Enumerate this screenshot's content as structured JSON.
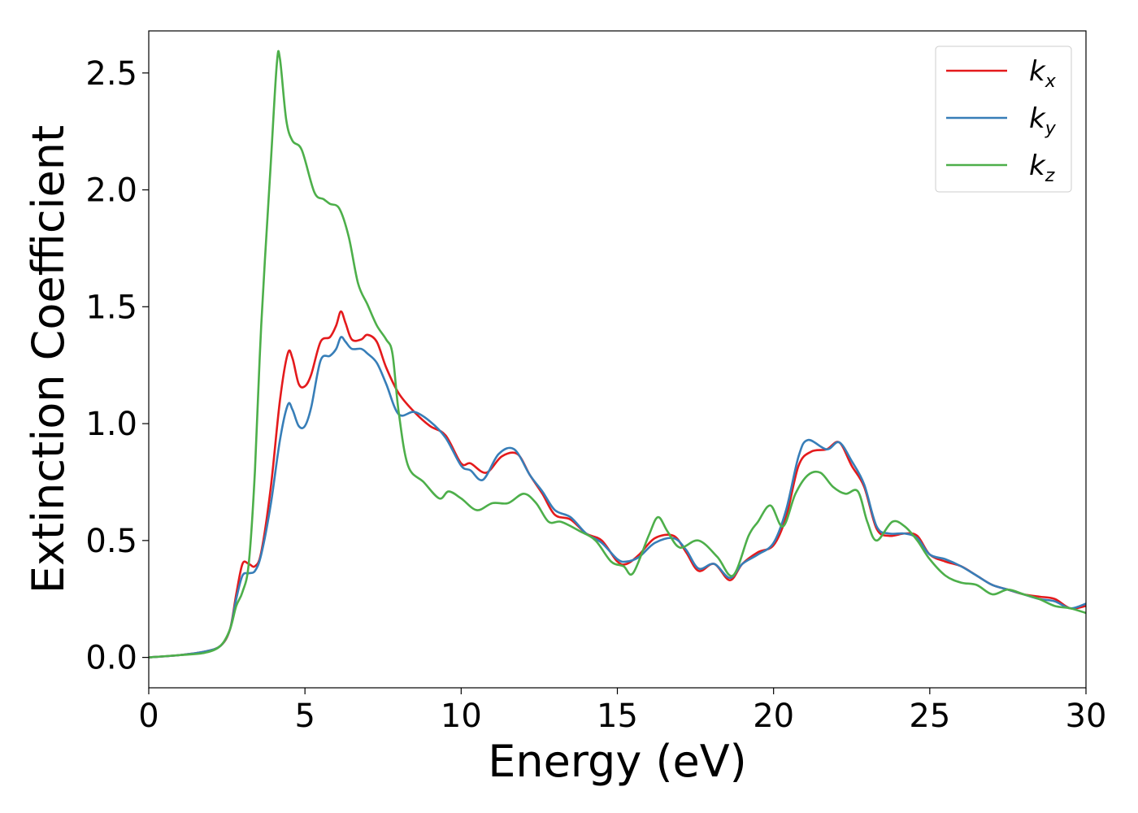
{
  "chart_data": {
    "type": "line",
    "title": "",
    "xlabel": "Energy (eV)",
    "ylabel": "Extinction Coefficient",
    "xlim": [
      0,
      30
    ],
    "ylim": [
      -0.13,
      2.68
    ],
    "xticks": [
      0,
      5,
      10,
      15,
      20,
      25,
      30
    ],
    "xtick_labels": [
      "0",
      "5",
      "10",
      "15",
      "20",
      "25",
      "30"
    ],
    "yticks": [
      0.0,
      0.5,
      1.0,
      1.5,
      2.0,
      2.5
    ],
    "ytick_labels": [
      "0.0",
      "0.5",
      "1.0",
      "1.5",
      "2.0",
      "2.5"
    ],
    "grid": false,
    "legend_position": "top-right",
    "series": [
      {
        "name": "k_x",
        "base": "k",
        "sub": "x",
        "color": "#e41a1c",
        "points": [
          [
            0,
            0
          ],
          [
            1,
            0.01
          ],
          [
            1.8,
            0.025
          ],
          [
            2.3,
            0.05
          ],
          [
            2.6,
            0.12
          ],
          [
            2.8,
            0.27
          ],
          [
            3.0,
            0.4
          ],
          [
            3.2,
            0.4
          ],
          [
            3.4,
            0.39
          ],
          [
            3.6,
            0.45
          ],
          [
            3.9,
            0.72
          ],
          [
            4.2,
            1.1
          ],
          [
            4.45,
            1.3
          ],
          [
            4.6,
            1.28
          ],
          [
            4.8,
            1.17
          ],
          [
            5.0,
            1.16
          ],
          [
            5.2,
            1.21
          ],
          [
            5.5,
            1.35
          ],
          [
            5.8,
            1.37
          ],
          [
            6.0,
            1.42
          ],
          [
            6.15,
            1.48
          ],
          [
            6.3,
            1.43
          ],
          [
            6.5,
            1.36
          ],
          [
            6.8,
            1.36
          ],
          [
            7.0,
            1.38
          ],
          [
            7.3,
            1.35
          ],
          [
            7.6,
            1.24
          ],
          [
            8.0,
            1.13
          ],
          [
            8.5,
            1.05
          ],
          [
            9.0,
            0.99
          ],
          [
            9.5,
            0.95
          ],
          [
            10.0,
            0.83
          ],
          [
            10.3,
            0.83
          ],
          [
            10.8,
            0.79
          ],
          [
            11.3,
            0.86
          ],
          [
            11.8,
            0.87
          ],
          [
            12.2,
            0.78
          ],
          [
            12.6,
            0.7
          ],
          [
            13.0,
            0.61
          ],
          [
            13.5,
            0.59
          ],
          [
            14.0,
            0.53
          ],
          [
            14.5,
            0.5
          ],
          [
            15.0,
            0.41
          ],
          [
            15.3,
            0.4
          ],
          [
            15.7,
            0.44
          ],
          [
            16.2,
            0.51
          ],
          [
            16.8,
            0.52
          ],
          [
            17.2,
            0.45
          ],
          [
            17.6,
            0.37
          ],
          [
            18.1,
            0.4
          ],
          [
            18.6,
            0.33
          ],
          [
            19.0,
            0.4
          ],
          [
            19.5,
            0.45
          ],
          [
            20.0,
            0.48
          ],
          [
            20.4,
            0.6
          ],
          [
            20.8,
            0.82
          ],
          [
            21.2,
            0.88
          ],
          [
            21.7,
            0.89
          ],
          [
            22.1,
            0.92
          ],
          [
            22.5,
            0.82
          ],
          [
            22.9,
            0.73
          ],
          [
            23.3,
            0.55
          ],
          [
            23.7,
            0.52
          ],
          [
            24.2,
            0.53
          ],
          [
            24.6,
            0.52
          ],
          [
            25.0,
            0.44
          ],
          [
            25.5,
            0.41
          ],
          [
            26.0,
            0.39
          ],
          [
            26.5,
            0.35
          ],
          [
            27.0,
            0.31
          ],
          [
            27.5,
            0.29
          ],
          [
            28.0,
            0.27
          ],
          [
            28.5,
            0.26
          ],
          [
            29.0,
            0.25
          ],
          [
            29.5,
            0.21
          ],
          [
            30.0,
            0.22
          ]
        ]
      },
      {
        "name": "k_y",
        "base": "k",
        "sub": "y",
        "color": "#377eb8",
        "points": [
          [
            0,
            0
          ],
          [
            1,
            0.01
          ],
          [
            1.8,
            0.025
          ],
          [
            2.3,
            0.05
          ],
          [
            2.6,
            0.12
          ],
          [
            2.8,
            0.25
          ],
          [
            3.0,
            0.35
          ],
          [
            3.2,
            0.36
          ],
          [
            3.4,
            0.37
          ],
          [
            3.6,
            0.44
          ],
          [
            3.9,
            0.65
          ],
          [
            4.2,
            0.93
          ],
          [
            4.45,
            1.08
          ],
          [
            4.6,
            1.06
          ],
          [
            4.8,
            0.99
          ],
          [
            5.0,
            0.99
          ],
          [
            5.2,
            1.07
          ],
          [
            5.5,
            1.27
          ],
          [
            5.8,
            1.29
          ],
          [
            6.0,
            1.32
          ],
          [
            6.15,
            1.37
          ],
          [
            6.3,
            1.35
          ],
          [
            6.5,
            1.32
          ],
          [
            6.8,
            1.32
          ],
          [
            7.0,
            1.3
          ],
          [
            7.3,
            1.26
          ],
          [
            7.6,
            1.17
          ],
          [
            8.0,
            1.04
          ],
          [
            8.5,
            1.05
          ],
          [
            9.0,
            1.01
          ],
          [
            9.5,
            0.94
          ],
          [
            10.0,
            0.82
          ],
          [
            10.3,
            0.8
          ],
          [
            10.7,
            0.76
          ],
          [
            11.2,
            0.87
          ],
          [
            11.7,
            0.89
          ],
          [
            12.2,
            0.78
          ],
          [
            12.6,
            0.71
          ],
          [
            13.0,
            0.63
          ],
          [
            13.5,
            0.6
          ],
          [
            14.0,
            0.53
          ],
          [
            14.5,
            0.49
          ],
          [
            15.0,
            0.42
          ],
          [
            15.3,
            0.41
          ],
          [
            15.7,
            0.43
          ],
          [
            16.2,
            0.49
          ],
          [
            16.8,
            0.51
          ],
          [
            17.2,
            0.46
          ],
          [
            17.6,
            0.38
          ],
          [
            18.1,
            0.4
          ],
          [
            18.6,
            0.34
          ],
          [
            19.0,
            0.4
          ],
          [
            19.5,
            0.44
          ],
          [
            20.0,
            0.49
          ],
          [
            20.4,
            0.63
          ],
          [
            20.8,
            0.86
          ],
          [
            21.1,
            0.93
          ],
          [
            21.7,
            0.89
          ],
          [
            22.1,
            0.92
          ],
          [
            22.5,
            0.84
          ],
          [
            22.9,
            0.74
          ],
          [
            23.3,
            0.56
          ],
          [
            23.7,
            0.53
          ],
          [
            24.2,
            0.53
          ],
          [
            24.6,
            0.51
          ],
          [
            25.0,
            0.44
          ],
          [
            25.5,
            0.42
          ],
          [
            26.0,
            0.39
          ],
          [
            26.5,
            0.35
          ],
          [
            27.0,
            0.31
          ],
          [
            27.5,
            0.29
          ],
          [
            28.0,
            0.27
          ],
          [
            28.5,
            0.25
          ],
          [
            29.0,
            0.24
          ],
          [
            29.5,
            0.21
          ],
          [
            30.0,
            0.23
          ]
        ]
      },
      {
        "name": "k_z",
        "base": "k",
        "sub": "z",
        "color": "#4daf4a",
        "points": [
          [
            0,
            0
          ],
          [
            1,
            0.01
          ],
          [
            1.8,
            0.02
          ],
          [
            2.3,
            0.05
          ],
          [
            2.6,
            0.12
          ],
          [
            2.8,
            0.22
          ],
          [
            3.0,
            0.28
          ],
          [
            3.2,
            0.4
          ],
          [
            3.4,
            0.8
          ],
          [
            3.6,
            1.42
          ],
          [
            3.9,
            2.1
          ],
          [
            4.1,
            2.54
          ],
          [
            4.2,
            2.56
          ],
          [
            4.4,
            2.3
          ],
          [
            4.6,
            2.21
          ],
          [
            4.9,
            2.17
          ],
          [
            5.3,
            1.99
          ],
          [
            5.6,
            1.96
          ],
          [
            5.8,
            1.94
          ],
          [
            6.1,
            1.92
          ],
          [
            6.4,
            1.8
          ],
          [
            6.7,
            1.6
          ],
          [
            7.0,
            1.51
          ],
          [
            7.3,
            1.42
          ],
          [
            7.6,
            1.36
          ],
          [
            7.8,
            1.3
          ],
          [
            8.0,
            1.05
          ],
          [
            8.3,
            0.82
          ],
          [
            8.8,
            0.75
          ],
          [
            9.3,
            0.68
          ],
          [
            9.6,
            0.71
          ],
          [
            10.0,
            0.68
          ],
          [
            10.5,
            0.63
          ],
          [
            11.0,
            0.66
          ],
          [
            11.5,
            0.66
          ],
          [
            12.0,
            0.7
          ],
          [
            12.4,
            0.66
          ],
          [
            12.8,
            0.58
          ],
          [
            13.2,
            0.58
          ],
          [
            13.8,
            0.54
          ],
          [
            14.3,
            0.5
          ],
          [
            14.8,
            0.41
          ],
          [
            15.2,
            0.39
          ],
          [
            15.5,
            0.36
          ],
          [
            16.0,
            0.52
          ],
          [
            16.3,
            0.6
          ],
          [
            16.6,
            0.54
          ],
          [
            17.0,
            0.47
          ],
          [
            17.6,
            0.5
          ],
          [
            18.2,
            0.43
          ],
          [
            18.7,
            0.35
          ],
          [
            19.2,
            0.52
          ],
          [
            19.5,
            0.58
          ],
          [
            19.9,
            0.65
          ],
          [
            20.3,
            0.56
          ],
          [
            20.7,
            0.7
          ],
          [
            21.1,
            0.78
          ],
          [
            21.5,
            0.79
          ],
          [
            21.9,
            0.73
          ],
          [
            22.3,
            0.7
          ],
          [
            22.7,
            0.71
          ],
          [
            23.0,
            0.58
          ],
          [
            23.3,
            0.5
          ],
          [
            23.8,
            0.58
          ],
          [
            24.2,
            0.56
          ],
          [
            24.6,
            0.5
          ],
          [
            25.0,
            0.42
          ],
          [
            25.5,
            0.35
          ],
          [
            26.0,
            0.32
          ],
          [
            26.5,
            0.31
          ],
          [
            27.0,
            0.27
          ],
          [
            27.5,
            0.29
          ],
          [
            28.0,
            0.27
          ],
          [
            28.5,
            0.25
          ],
          [
            29.0,
            0.22
          ],
          [
            29.5,
            0.21
          ],
          [
            30.0,
            0.19
          ]
        ]
      }
    ]
  }
}
